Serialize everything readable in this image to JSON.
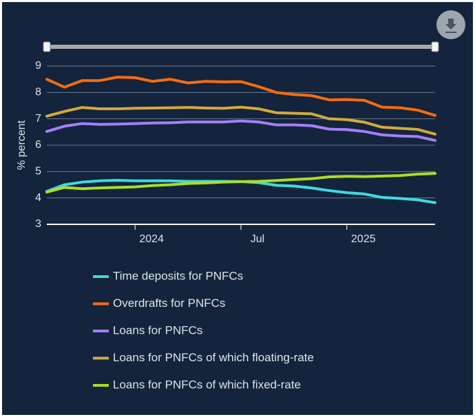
{
  "chart_data": {
    "type": "line",
    "y_label": "% percent",
    "x": [
      "2023-08",
      "2023-09",
      "2023-10",
      "2023-11",
      "2023-12",
      "2024-01",
      "2024-02",
      "2024-03",
      "2024-04",
      "2024-05",
      "2024-06",
      "2024-07",
      "2024-08",
      "2024-09",
      "2024-10",
      "2024-11",
      "2024-12",
      "2025-01",
      "2025-02",
      "2025-03",
      "2025-04",
      "2025-05",
      "2025-06"
    ],
    "xlim": [
      "2023-08",
      "2025-06"
    ],
    "xticks": [
      {
        "value": "2024-01",
        "label": "2024"
      },
      {
        "value": "2024-07",
        "label": "Jul"
      },
      {
        "value": "2025-01",
        "label": "2025"
      }
    ],
    "ylim": [
      3,
      9
    ],
    "yticks": [
      3,
      4,
      5,
      6,
      7,
      8,
      9
    ],
    "grid": true,
    "series": [
      {
        "name": "Time deposits for PNFCs",
        "color": "#3fd9e0",
        "values": [
          4.25,
          4.5,
          4.6,
          4.65,
          4.67,
          4.65,
          4.65,
          4.65,
          4.63,
          4.63,
          4.63,
          4.62,
          4.58,
          4.48,
          4.45,
          4.38,
          4.28,
          4.2,
          4.15,
          4.02,
          3.98,
          3.93,
          3.82
        ]
      },
      {
        "name": "Overdrafts for PNFCs",
        "color": "#fb6c0c",
        "values": [
          8.5,
          8.2,
          8.45,
          8.45,
          8.58,
          8.56,
          8.42,
          8.5,
          8.36,
          8.42,
          8.4,
          8.41,
          8.22,
          8.0,
          7.92,
          7.88,
          7.72,
          7.73,
          7.7,
          7.44,
          7.42,
          7.33,
          7.13
        ]
      },
      {
        "name": "Loans for PNFCs",
        "color": "#a580f6",
        "values": [
          6.52,
          6.72,
          6.82,
          6.79,
          6.8,
          6.82,
          6.84,
          6.85,
          6.88,
          6.88,
          6.88,
          6.92,
          6.88,
          6.77,
          6.77,
          6.74,
          6.61,
          6.59,
          6.52,
          6.39,
          6.35,
          6.33,
          6.18
        ]
      },
      {
        "name": "Loans for PNFCs of which floating-rate",
        "color": "#d4aa3c",
        "values": [
          7.1,
          7.28,
          7.43,
          7.38,
          7.38,
          7.4,
          7.41,
          7.42,
          7.43,
          7.41,
          7.4,
          7.44,
          7.38,
          7.23,
          7.21,
          7.19,
          7.0,
          6.97,
          6.87,
          6.68,
          6.64,
          6.6,
          6.42
        ]
      },
      {
        "name": "Loans for PNFCs of which fixed-rate",
        "color": "#aade22",
        "values": [
          4.22,
          4.4,
          4.35,
          4.38,
          4.4,
          4.42,
          4.47,
          4.5,
          4.55,
          4.57,
          4.6,
          4.62,
          4.63,
          4.66,
          4.7,
          4.73,
          4.8,
          4.82,
          4.81,
          4.83,
          4.85,
          4.9,
          4.93
        ]
      }
    ]
  }
}
